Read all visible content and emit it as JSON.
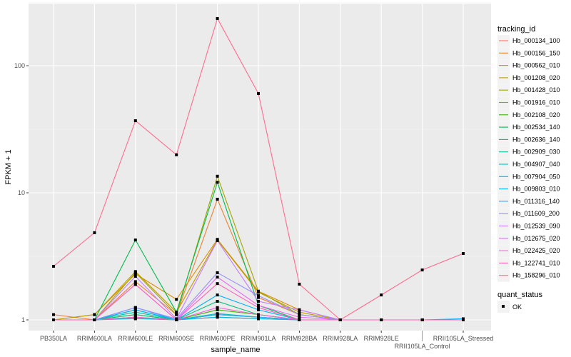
{
  "chart_data": {
    "type": "line",
    "xlabel": "sample_name",
    "ylabel": "FPKM + 1",
    "y_scale": "log10",
    "ylim": [
      0.97,
      300
    ],
    "y_ticks": [
      "1",
      "10",
      "100"
    ],
    "grid": true,
    "background": "#EBEBEB",
    "legend_placement": "right",
    "legend_title": "tracking_id",
    "shape_legend_title": "quant_status",
    "shape_legend_items": [
      "OK"
    ],
    "categories": [
      "PB350LA",
      "RRIM600LA",
      "RRIM600LE",
      "RRIM600SE",
      "RRIM600PE",
      "RRIM901LA",
      "RRIM928BA",
      "RRIM928LA",
      "RRIM928LE",
      "RRII105LA_Control",
      "RRII105LA_Stressed"
    ],
    "series": [
      {
        "name": "Hb_000134_100",
        "color": "#F8766D",
        "values": [
          1,
          1,
          1.02,
          1,
          1.05,
          1.02,
          1,
          1,
          1,
          1,
          1
        ]
      },
      {
        "name": "Hb_000156_150",
        "color": "#EA8331",
        "values": [
          1.1,
          1,
          2.0,
          1.1,
          8.9,
          1.5,
          1.1,
          1,
          1,
          1,
          1
        ]
      },
      {
        "name": "Hb_000562_010",
        "color": "#D89000",
        "values": [
          1,
          1.1,
          2.3,
          1.45,
          4.3,
          1.68,
          1.2,
          1,
          1,
          1,
          1
        ]
      },
      {
        "name": "Hb_001208_020",
        "color": "#C09B00",
        "values": [
          1,
          1.1,
          2.4,
          1.15,
          4.25,
          1.65,
          1.15,
          1,
          1,
          1,
          1
        ]
      },
      {
        "name": "Hb_001428_010",
        "color": "#A3A500",
        "values": [
          1,
          1,
          2.35,
          1.1,
          13.5,
          1.68,
          1.1,
          1,
          1,
          1,
          1
        ]
      },
      {
        "name": "Hb_001916_010",
        "color": "#7CAE00",
        "values": [
          1,
          1,
          1.05,
          1,
          1.1,
          1.05,
          1,
          1,
          1,
          1,
          1
        ]
      },
      {
        "name": "Hb_002108_020",
        "color": "#39B600",
        "values": [
          1,
          1,
          1.1,
          1,
          1.2,
          1.1,
          1,
          1,
          1,
          1,
          1
        ]
      },
      {
        "name": "Hb_002534_140",
        "color": "#00BB4E",
        "values": [
          1,
          1,
          4.25,
          1.15,
          12.1,
          1.3,
          1,
          1,
          1,
          1,
          1
        ]
      },
      {
        "name": "Hb_002636_140",
        "color": "#00BF7D",
        "values": [
          1,
          1,
          1.1,
          1,
          1.4,
          1.1,
          1,
          1,
          1,
          1,
          1
        ]
      },
      {
        "name": "Hb_002909_030",
        "color": "#00C1A3",
        "values": [
          1,
          1,
          1.15,
          1,
          1.1,
          1.05,
          1,
          1,
          1,
          1,
          1
        ]
      },
      {
        "name": "Hb_004907_040",
        "color": "#00BFC4",
        "values": [
          1,
          1,
          1.2,
          1,
          1.12,
          1.05,
          1,
          1,
          1,
          1,
          1
        ]
      },
      {
        "name": "Hb_007904_050",
        "color": "#00BAE0",
        "values": [
          1,
          1,
          1.03,
          1,
          1.05,
          1.02,
          1,
          1,
          1,
          1,
          1
        ]
      },
      {
        "name": "Hb_009803_010",
        "color": "#00B0F6",
        "values": [
          1,
          1,
          1.2,
          1,
          1.57,
          1.2,
          1,
          1,
          1,
          1,
          1.02
        ]
      },
      {
        "name": "Hb_011316_140",
        "color": "#35A2FF",
        "values": [
          1,
          1,
          1.25,
          1,
          1.1,
          1.05,
          1,
          1,
          1,
          1,
          1
        ]
      },
      {
        "name": "Hb_011609_200",
        "color": "#9590FF",
        "values": [
          1,
          1,
          1.25,
          1.02,
          2.35,
          1.55,
          1.1,
          1,
          1,
          1,
          1
        ]
      },
      {
        "name": "Hb_012539_090",
        "color": "#C77CFF",
        "values": [
          1,
          1,
          2.2,
          1.02,
          4.2,
          1.4,
          1.2,
          1,
          1,
          1,
          1
        ]
      },
      {
        "name": "Hb_012675_020",
        "color": "#E76BF3",
        "values": [
          1,
          1,
          1.9,
          1,
          2.17,
          1.3,
          1.05,
          1,
          1,
          1,
          1
        ]
      },
      {
        "name": "Hb_022425_020",
        "color": "#FA62DB",
        "values": [
          1,
          1,
          1.05,
          1,
          1.25,
          1.1,
          1,
          1,
          1,
          1,
          1
        ]
      },
      {
        "name": "Hb_122741_010",
        "color": "#FF62BC",
        "values": [
          1,
          1,
          1.9,
          1,
          1.93,
          1.25,
          1,
          1,
          1,
          1,
          1
        ]
      },
      {
        "name": "Hb_158296_010",
        "color": "#FF6C91",
        "values": [
          2.64,
          4.85,
          36.9,
          19.9,
          235,
          60.4,
          1.91,
          1,
          1.57,
          2.47,
          3.33
        ]
      }
    ]
  }
}
